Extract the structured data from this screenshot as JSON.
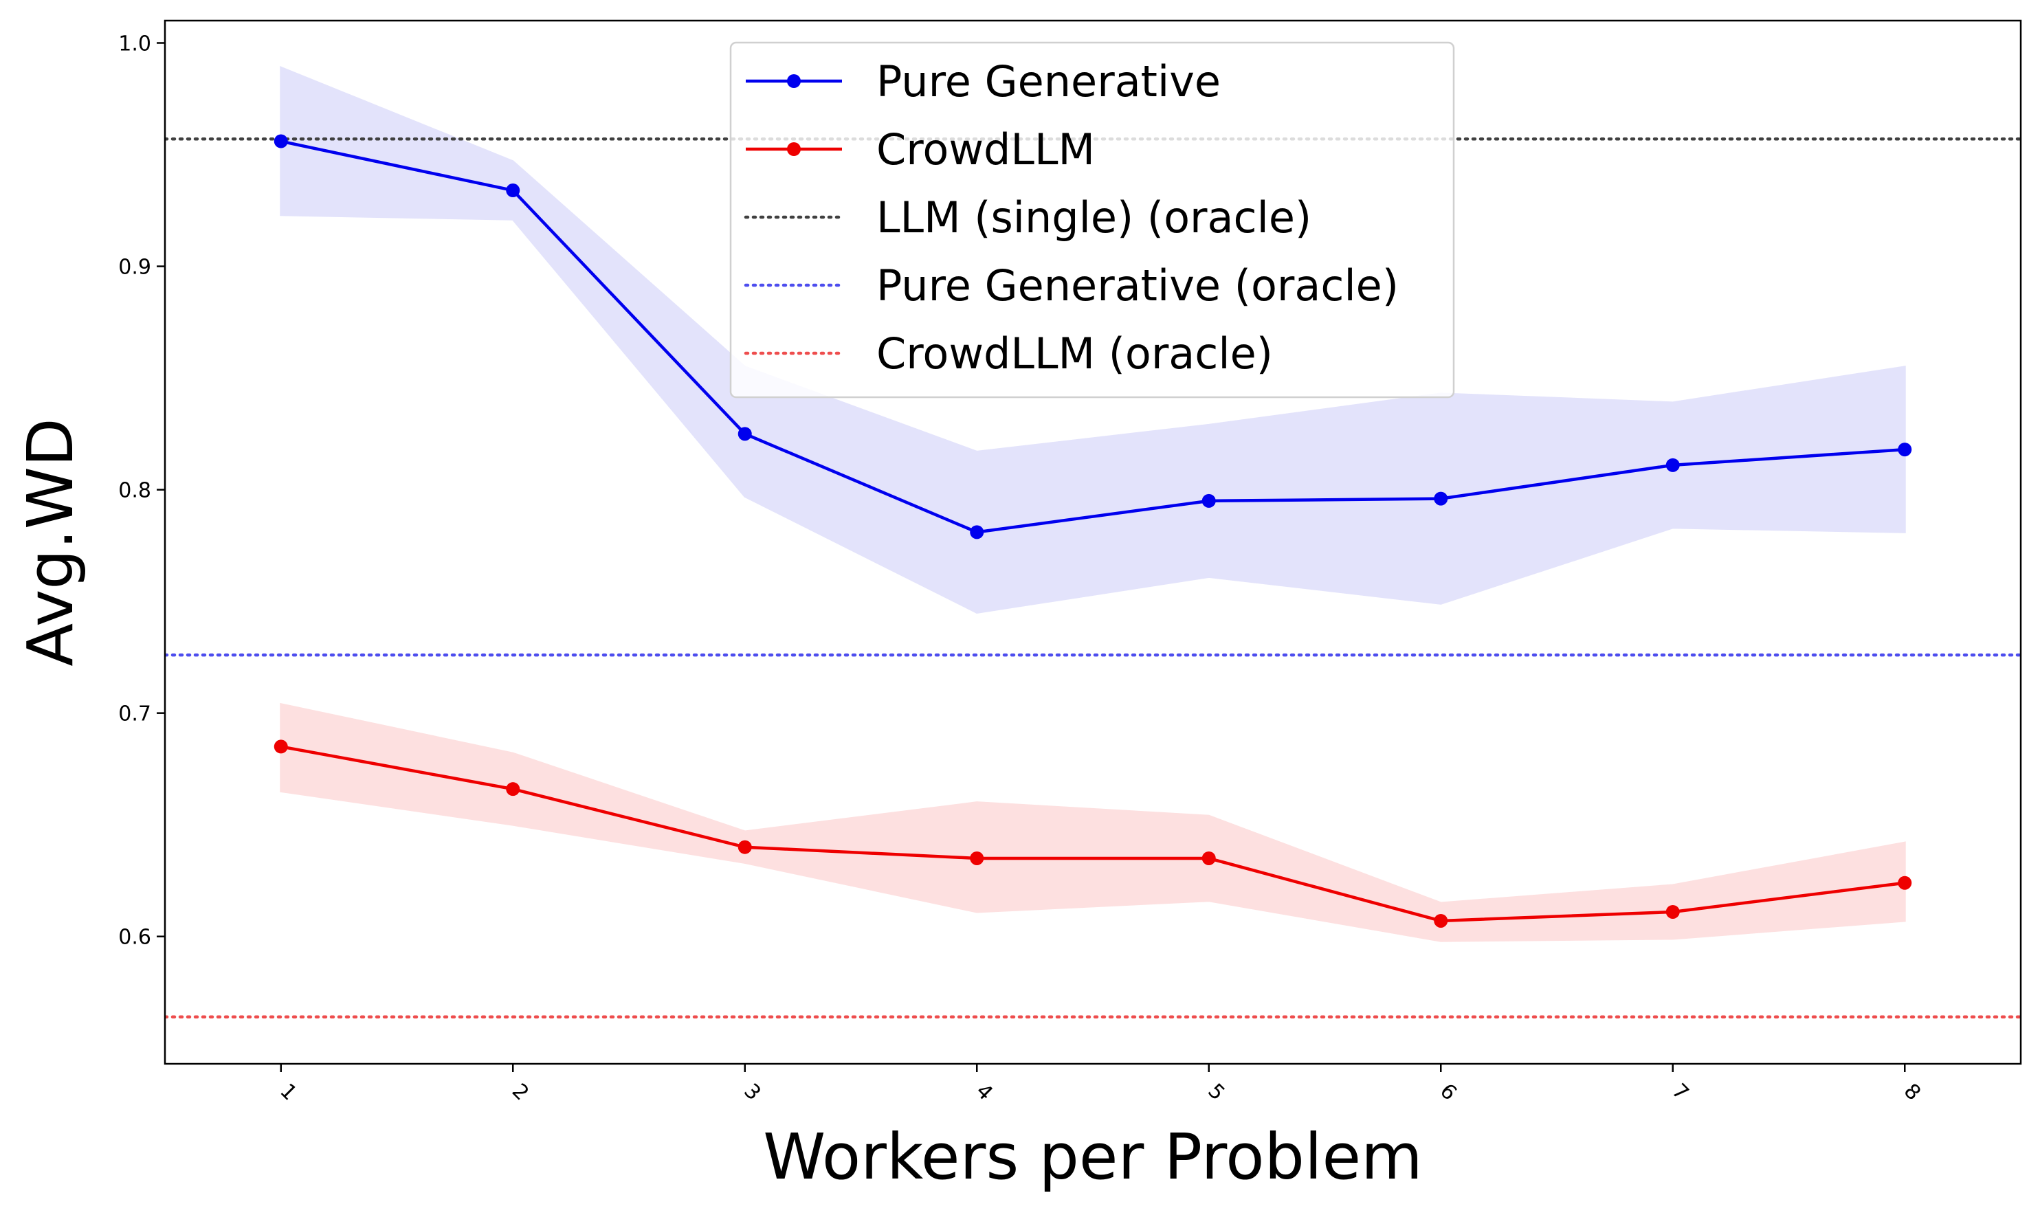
{
  "chart_data": {
    "type": "line",
    "title": "",
    "xlabel": "Workers per Problem",
    "ylabel": "Avg.WD",
    "x": [
      1,
      2,
      3,
      4,
      5,
      6,
      7,
      8
    ],
    "xlim": [
      0.5,
      8.5
    ],
    "ylim": [
      0.543,
      1.01
    ],
    "yticks": [
      0.6,
      0.7,
      0.8,
      0.9,
      1.0
    ],
    "ytick_labels": [
      "0.6",
      "0.7",
      "0.8",
      "0.9",
      "1.0"
    ],
    "xtick_labels": [
      "1",
      "2",
      "3",
      "4",
      "5",
      "6",
      "7",
      "8"
    ],
    "grid": false,
    "legend_position": "top-center",
    "series": [
      {
        "name": "Pure Generative",
        "color": "#0000ee",
        "values": [
          0.956,
          0.934,
          0.825,
          0.781,
          0.795,
          0.796,
          0.811,
          0.818
        ],
        "band_upper": [
          0.989,
          0.947,
          0.855,
          0.817,
          0.829,
          0.843,
          0.839,
          0.855
        ],
        "band_lower": [
          0.923,
          0.921,
          0.797,
          0.745,
          0.761,
          0.749,
          0.783,
          0.781
        ],
        "band_color": "#e3e3fb"
      },
      {
        "name": "CrowdLLM",
        "color": "#ee0000",
        "values": [
          0.685,
          0.666,
          0.64,
          0.635,
          0.635,
          0.607,
          0.611,
          0.624
        ],
        "band_upper": [
          0.704,
          0.682,
          0.647,
          0.66,
          0.654,
          0.615,
          0.623,
          0.642
        ],
        "band_lower": [
          0.665,
          0.65,
          0.633,
          0.611,
          0.616,
          0.598,
          0.599,
          0.607
        ],
        "band_color": "#fde0e0"
      }
    ],
    "reference_lines": [
      {
        "name": "LLM (single) (oracle)",
        "value": 0.957,
        "color": "#404040"
      },
      {
        "name": "Pure Generative (oracle)",
        "value": 0.726,
        "color": "#4d4dee"
      },
      {
        "name": "CrowdLLM (oracle)",
        "value": 0.564,
        "color": "#ee4d4d"
      }
    ]
  }
}
